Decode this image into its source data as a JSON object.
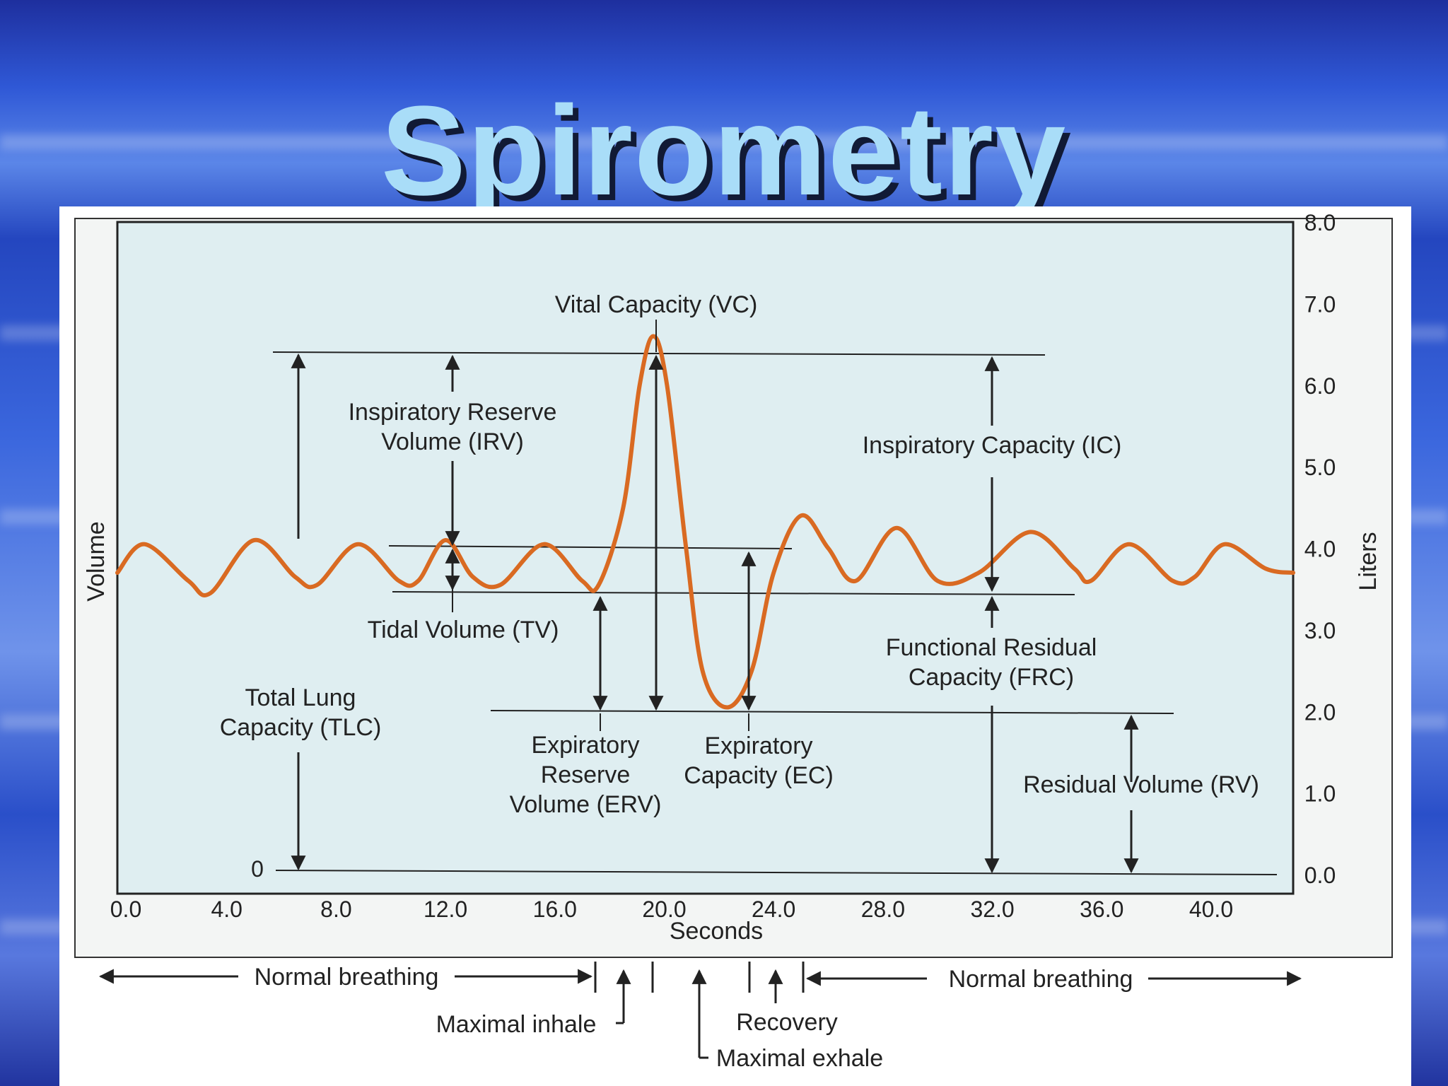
{
  "slide": {
    "title": "Spirometry"
  },
  "chart_data": {
    "type": "line",
    "title": "",
    "xlabel": "Seconds",
    "ylabel_left": "Volume",
    "ylabel_right": "Liters",
    "xlim": [
      0,
      43
    ],
    "ylim": [
      0,
      8
    ],
    "grid": false,
    "x_ticks": [
      "0.0",
      "4.0",
      "8.0",
      "12.0",
      "16.0",
      "20.0",
      "24.0",
      "28.0",
      "32.0",
      "36.0",
      "40.0"
    ],
    "y_ticks": [
      "0.0",
      "1.0",
      "2.0",
      "3.0",
      "4.0",
      "5.0",
      "6.0",
      "7.0",
      "8.0"
    ],
    "zero_label": "0",
    "reference_levels": {
      "max_inspiration": 6.6,
      "tidal_peak": 4.1,
      "end_tidal": 3.55,
      "residual": 2.05,
      "zero": 0.0
    },
    "series": [
      {
        "points": [
          [
            0.0,
            3.7
          ],
          [
            1.0,
            4.05
          ],
          [
            2.6,
            3.6
          ],
          [
            3.4,
            3.45
          ],
          [
            5.0,
            4.1
          ],
          [
            6.5,
            3.65
          ],
          [
            7.3,
            3.55
          ],
          [
            8.8,
            4.05
          ],
          [
            10.3,
            3.6
          ],
          [
            11.0,
            3.6
          ],
          [
            12.0,
            4.1
          ],
          [
            13.0,
            3.65
          ],
          [
            14.0,
            3.55
          ],
          [
            15.6,
            4.05
          ],
          [
            17.0,
            3.6
          ],
          [
            17.6,
            3.55
          ],
          [
            18.5,
            4.5
          ],
          [
            19.1,
            6.0
          ],
          [
            19.6,
            6.6
          ],
          [
            20.1,
            6.0
          ],
          [
            20.8,
            4.0
          ],
          [
            21.4,
            2.5
          ],
          [
            22.3,
            2.05
          ],
          [
            23.2,
            2.5
          ],
          [
            24.0,
            3.7
          ],
          [
            25.0,
            4.4
          ],
          [
            26.0,
            4.0
          ],
          [
            27.0,
            3.6
          ],
          [
            28.5,
            4.25
          ],
          [
            30.0,
            3.6
          ],
          [
            31.5,
            3.7
          ],
          [
            33.4,
            4.2
          ],
          [
            35.0,
            3.75
          ],
          [
            35.6,
            3.6
          ],
          [
            37.0,
            4.05
          ],
          [
            38.6,
            3.6
          ],
          [
            39.4,
            3.65
          ],
          [
            40.5,
            4.05
          ],
          [
            42.0,
            3.75
          ],
          [
            43.0,
            3.7
          ]
        ]
      }
    ],
    "annotations": {
      "vc": "Vital Capacity (VC)",
      "irv": [
        "Inspiratory Reserve",
        "Volume (IRV)"
      ],
      "ic": "Inspiratory Capacity (IC)",
      "tv": "Tidal Volume (TV)",
      "frc": [
        "Functional Residual",
        "Capacity (FRC)"
      ],
      "tlc": [
        "Total Lung",
        "Capacity (TLC)"
      ],
      "erv": [
        "Expiratory",
        "Reserve",
        "Volume (ERV)"
      ],
      "ec": [
        "Expiratory",
        "Capacity (EC)"
      ],
      "rv": "Residual Volume (RV)"
    },
    "timeline": {
      "normal_breathing_left": "Normal breathing",
      "normal_breathing_right": "Normal breathing",
      "maximal_inhale": "Maximal inhale",
      "recovery": "Recovery",
      "maximal_exhale": "Maximal exhale"
    },
    "colors": {
      "plot_bg": "#dfeef1",
      "curve": "#d96a22",
      "line": "#222222"
    }
  }
}
